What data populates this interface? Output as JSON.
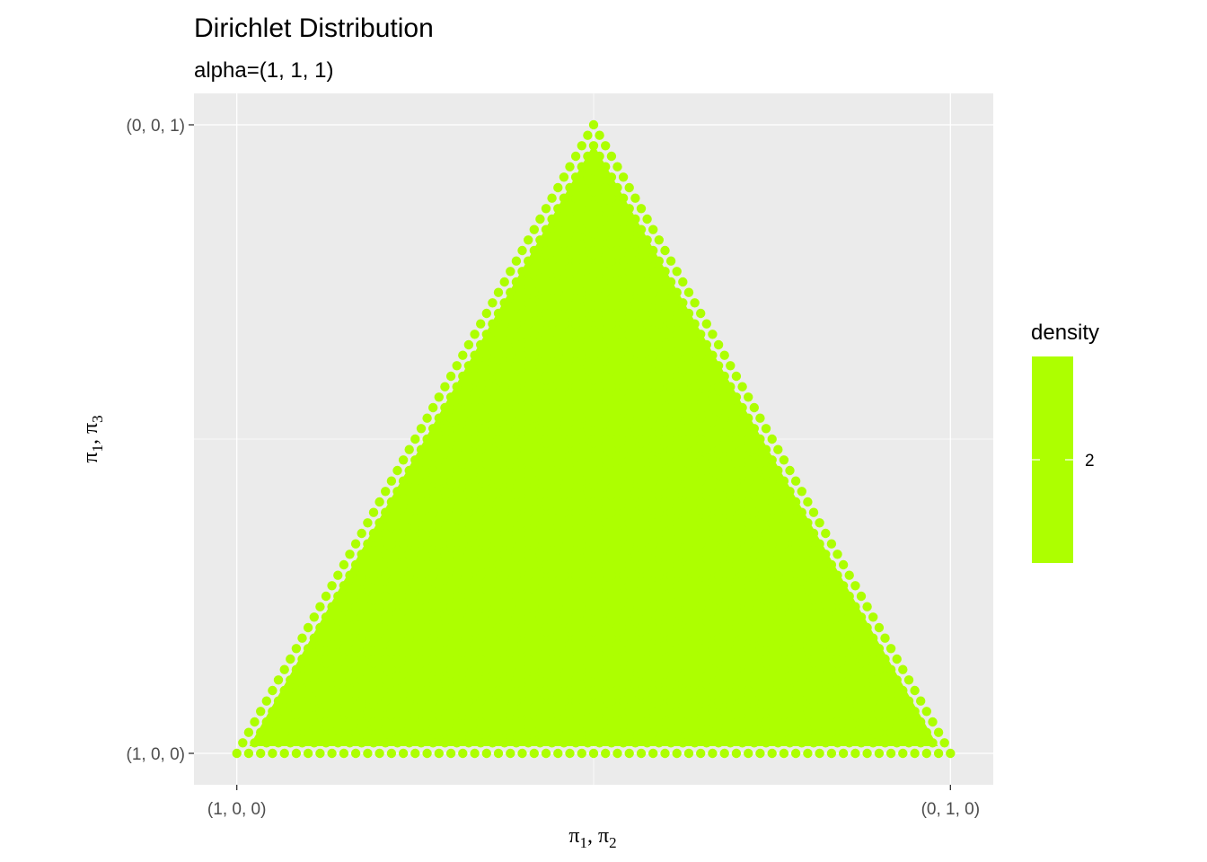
{
  "chart_data": {
    "type": "scatter",
    "title": "Dirichlet Distribution",
    "subtitle": "alpha=(1, 1, 1)",
    "xlabel": {
      "parts": [
        "π",
        "1",
        ", π",
        "2"
      ]
    },
    "ylabel": {
      "parts": [
        "π",
        "1",
        ", π",
        "3"
      ]
    },
    "x_ticks": [
      "(1, 0, 0)",
      "(0, 1, 0)"
    ],
    "y_ticks": [
      "(1, 0, 0)",
      "(0, 0, 1)"
    ],
    "xlim": [
      -0.06,
      1.06
    ],
    "ylim": [
      -0.05,
      1.05
    ],
    "grid": true,
    "simplex_vertices": [
      [
        0,
        0
      ],
      [
        1,
        0
      ],
      [
        0.5,
        1
      ]
    ],
    "point_density": 2,
    "point_color": "#ADFF00",
    "legend": {
      "title": "density",
      "ticks": [
        2
      ],
      "placement": "right",
      "color": "#ADFF00"
    }
  }
}
